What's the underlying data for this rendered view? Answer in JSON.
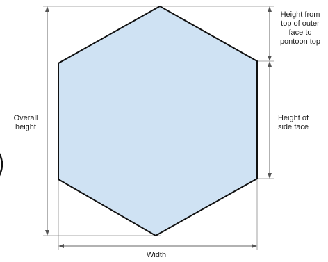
{
  "diagram": {
    "labels": {
      "overall_height": [
        "Overall",
        "height"
      ],
      "top_to_pontoon": [
        "Height from",
        "top of outer",
        "face to",
        "pontoon top"
      ],
      "side_face": [
        "Height of",
        "side face"
      ],
      "width": "Width"
    },
    "colors": {
      "hexagon_fill": "#cfe2f3",
      "hexagon_stroke": "#111111",
      "dimension_line": "#666666"
    }
  }
}
